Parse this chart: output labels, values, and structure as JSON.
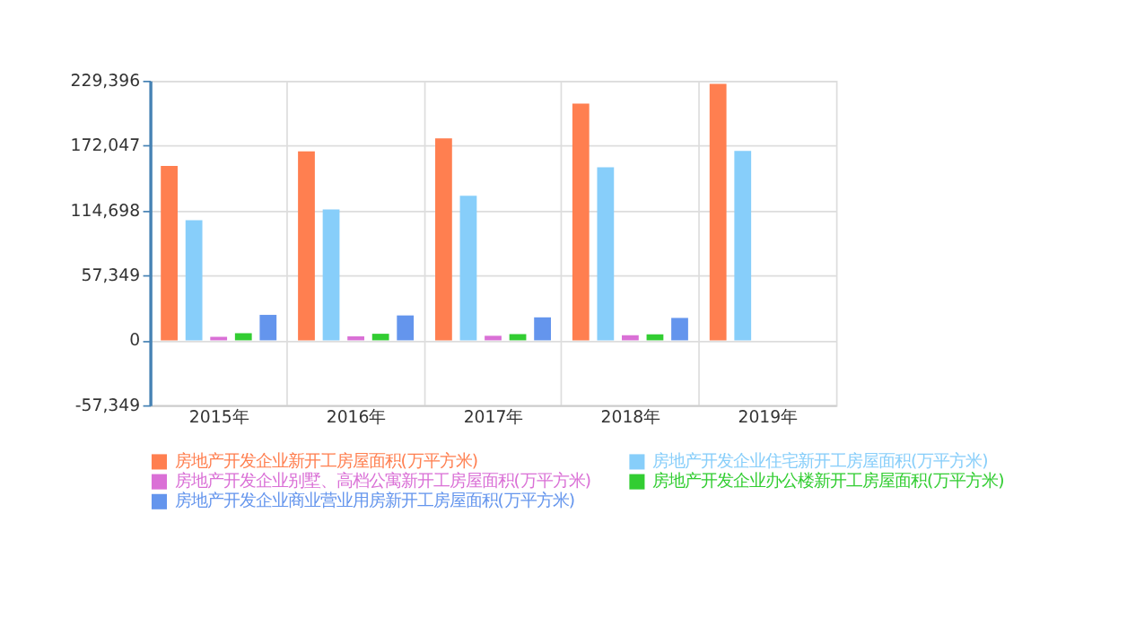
{
  "chart_data": {
    "type": "bar",
    "categories": [
      "2015年",
      "2016年",
      "2017年",
      "2018年",
      "2019年"
    ],
    "series": [
      {
        "name": "房地产开发企业新开工房屋面积(万平方米)",
        "color": "#ff7f50",
        "values": [
          154200,
          166900,
          178500,
          209100,
          226600
        ]
      },
      {
        "name": "房地产开发企业住宅新开工房屋面积(万平方米)",
        "color": "#87cefa",
        "values": [
          106200,
          115600,
          127700,
          152900,
          167300
        ]
      },
      {
        "name": "房地产开发企业别墅、高档公寓新开工房屋面积(万平方米)",
        "color": "#da70d6",
        "values": [
          3100,
          3500,
          4000,
          4500,
          null
        ]
      },
      {
        "name": "房地产开发企业办公楼新开工房屋面积(万平方米)",
        "color": "#32cd32",
        "values": [
          6300,
          5800,
          5500,
          5300,
          null
        ]
      },
      {
        "name": "房地产开发企业商业营业用房新开工房屋面积(万平方米)",
        "color": "#6495ed",
        "values": [
          22500,
          22000,
          20300,
          19800,
          null
        ]
      }
    ],
    "ylim": [
      -57349,
      229396
    ],
    "yticks": [
      {
        "value": -57349,
        "label": "-57,349"
      },
      0,
      {
        "value": 57349,
        "label": "57,349"
      },
      {
        "value": 114698,
        "label": "114,698"
      },
      {
        "value": 172047,
        "label": "172,047"
      },
      {
        "value": 229396,
        "label": "229,396"
      }
    ],
    "grid": true,
    "legend": "bottom"
  }
}
